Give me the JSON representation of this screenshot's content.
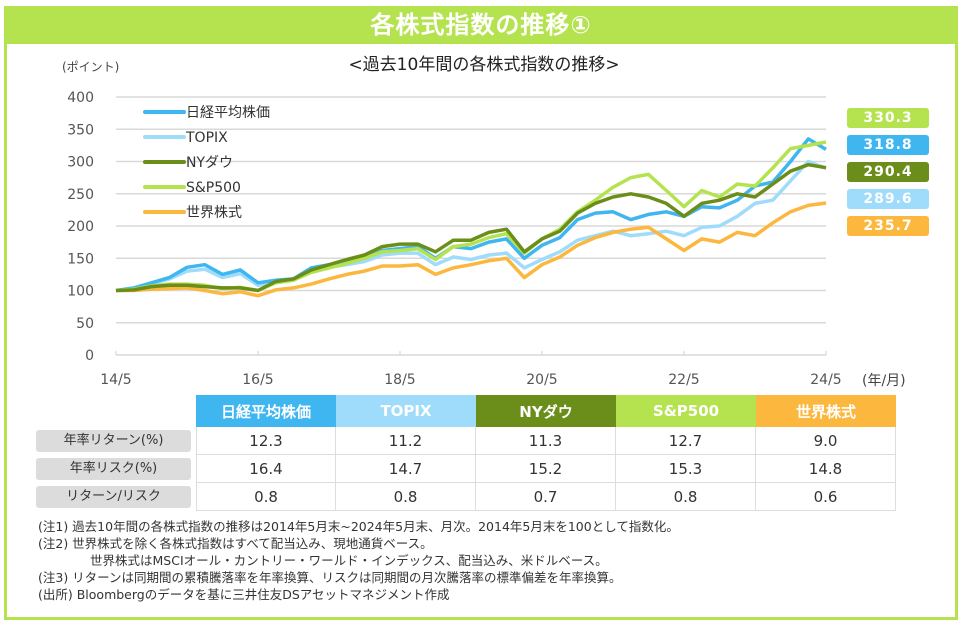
{
  "header": {
    "title": "各株式指数の推移①"
  },
  "subtitle": "<過去10年間の各株式指数の推移>",
  "y_unit": "(ポイント)",
  "x_unit": "(年/月)",
  "chart_data": {
    "type": "line",
    "title": "過去10年間の各株式指数の推移",
    "xlabel": "(年/月)",
    "ylabel": "(ポイント)",
    "ylim": [
      0,
      400
    ],
    "yticks": [
      "0",
      "50",
      "100",
      "150",
      "200",
      "250",
      "300",
      "350",
      "400"
    ],
    "ytick_values": [
      0,
      50,
      100,
      150,
      200,
      250,
      300,
      350,
      400
    ],
    "xticks": [
      "14/5",
      "16/5",
      "18/5",
      "20/5",
      "22/5",
      "24/5"
    ],
    "xtick_months": [
      0,
      24,
      48,
      72,
      96,
      120
    ],
    "x_months_step": 3,
    "x_count": 41,
    "grid": true,
    "legend_position": "top-left",
    "series": [
      {
        "name": "日経平均株価",
        "color": "#3fb6f0",
        "values": [
          100,
          104,
          112,
          120,
          136,
          140,
          125,
          132,
          112,
          116,
          118,
          135,
          140,
          145,
          150,
          162,
          165,
          168,
          150,
          168,
          165,
          175,
          180,
          150,
          170,
          182,
          210,
          220,
          222,
          210,
          218,
          222,
          215,
          230,
          228,
          240,
          262,
          268,
          300,
          335,
          318.8
        ]
      },
      {
        "name": "TOPIX",
        "color": "#9fdcfb",
        "values": [
          100,
          103,
          110,
          118,
          130,
          133,
          120,
          126,
          108,
          112,
          116,
          132,
          136,
          140,
          145,
          155,
          158,
          158,
          140,
          152,
          148,
          155,
          158,
          135,
          148,
          160,
          178,
          185,
          192,
          185,
          188,
          192,
          185,
          198,
          200,
          215,
          235,
          240,
          270,
          300,
          289.6
        ]
      },
      {
        "name": "NYダウ",
        "color": "#6b8e1a",
        "values": [
          100,
          101,
          106,
          108,
          108,
          106,
          104,
          104,
          100,
          114,
          118,
          132,
          140,
          148,
          155,
          168,
          172,
          172,
          160,
          178,
          178,
          190,
          195,
          160,
          180,
          192,
          220,
          235,
          245,
          250,
          245,
          235,
          215,
          235,
          240,
          250,
          245,
          265,
          285,
          295,
          290.4
        ]
      },
      {
        "name": "S&P500",
        "color": "#b5e350",
        "values": [
          100,
          102,
          107,
          110,
          110,
          108,
          103,
          105,
          100,
          112,
          116,
          128,
          135,
          142,
          150,
          160,
          162,
          165,
          148,
          168,
          172,
          182,
          188,
          158,
          180,
          195,
          222,
          240,
          260,
          275,
          280,
          255,
          230,
          255,
          245,
          265,
          262,
          290,
          320,
          325,
          330.3
        ]
      },
      {
        "name": "世界株式",
        "color": "#fbb73e",
        "values": [
          100,
          100,
          102,
          103,
          104,
          100,
          95,
          98,
          92,
          101,
          104,
          110,
          118,
          125,
          130,
          138,
          138,
          140,
          125,
          135,
          140,
          146,
          150,
          120,
          140,
          152,
          170,
          182,
          190,
          195,
          198,
          180,
          162,
          180,
          175,
          190,
          185,
          205,
          222,
          232,
          235.7
        ]
      }
    ],
    "end_labels": [
      {
        "value": "330.3",
        "series": "S&P500"
      },
      {
        "value": "318.8",
        "series": "日経平均株価"
      },
      {
        "value": "290.4",
        "series": "NYダウ"
      },
      {
        "value": "289.6",
        "series": "TOPIX"
      },
      {
        "value": "235.7",
        "series": "世界株式"
      }
    ]
  },
  "table": {
    "headers": [
      {
        "label": "日経平均株価",
        "color": "#3fb6f0"
      },
      {
        "label": "TOPIX",
        "color": "#9fdcfb"
      },
      {
        "label": "NYダウ",
        "color": "#6b8e1a"
      },
      {
        "label": "S&P500",
        "color": "#b5e350"
      },
      {
        "label": "世界株式",
        "color": "#fbb73e"
      }
    ],
    "rows": [
      {
        "label": "年率リターン(%)",
        "values": [
          "12.3",
          "11.2",
          "11.3",
          "12.7",
          "9.0"
        ]
      },
      {
        "label": "年率リスク(%)",
        "values": [
          "16.4",
          "14.7",
          "15.2",
          "15.3",
          "14.8"
        ]
      },
      {
        "label": "リターン/リスク",
        "values": [
          "0.8",
          "0.8",
          "0.7",
          "0.8",
          "0.6"
        ]
      }
    ]
  },
  "notes": [
    "(注1) 過去10年間の各株式指数の推移は2014年5月末~2024年5月末、月次。2014年5月末を100として指数化。",
    "(注2) 世界株式を除く各株式指数はすべて配当込み、現地通貨ベース。",
    "世界株式はMSCIオール・カントリー・ワールド・インデックス、配当込み、米ドルベース。",
    "(注3) リターンは同期間の累積騰落率を年率換算、リスクは同期間の月次騰落率の標準偏差を年率換算。",
    "(出所) Bloombergのデータを基に三井住友DSアセットマネジメント作成"
  ]
}
